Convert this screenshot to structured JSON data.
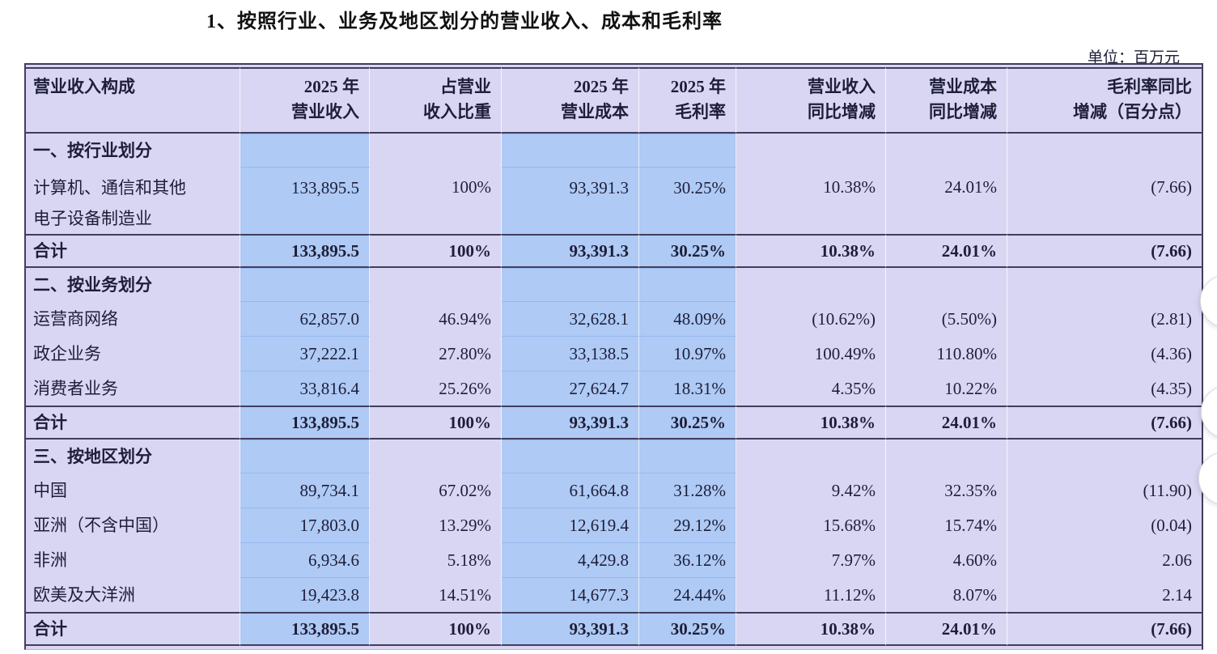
{
  "page": {
    "title": "1、按照行业、业务及地区划分的营业收入、成本和毛利率",
    "unit_label": "单位：百万元"
  },
  "colors": {
    "row_band_blue": "#aecaf5",
    "table_lavender": "#d9d6f3",
    "rule_dark": "#413e5c",
    "text": "#1e1e38"
  },
  "table": {
    "columns": [
      {
        "label": "营业收入构成"
      },
      {
        "label": "2025 年\n营业收入"
      },
      {
        "label": "占营业\n收入比重"
      },
      {
        "label": "2025 年\n营业成本"
      },
      {
        "label": "2025 年\n毛利率"
      },
      {
        "label": "营业收入\n同比增减"
      },
      {
        "label": "营业成本\n同比增减"
      },
      {
        "label": "毛利率同比\n增减（百分点）"
      }
    ],
    "total_label": "合计",
    "sections": [
      {
        "title": "一、按行业划分",
        "rows": [
          {
            "label": "计算机、通信和其他\n电子设备制造业",
            "values": [
              "133,895.5",
              "100%",
              "93,391.3",
              "30.25%",
              "10.38%",
              "24.01%",
              "(7.66)"
            ]
          }
        ],
        "total": [
          "133,895.5",
          "100%",
          "93,391.3",
          "30.25%",
          "10.38%",
          "24.01%",
          "(7.66)"
        ]
      },
      {
        "title": "二、按业务划分",
        "rows": [
          {
            "label": "运营商网络",
            "values": [
              "62,857.0",
              "46.94%",
              "32,628.1",
              "48.09%",
              "(10.62%)",
              "(5.50%)",
              "(2.81)"
            ]
          },
          {
            "label": "政企业务",
            "values": [
              "37,222.1",
              "27.80%",
              "33,138.5",
              "10.97%",
              "100.49%",
              "110.80%",
              "(4.36)"
            ]
          },
          {
            "label": "消费者业务",
            "values": [
              "33,816.4",
              "25.26%",
              "27,624.7",
              "18.31%",
              "4.35%",
              "10.22%",
              "(4.35)"
            ]
          }
        ],
        "total": [
          "133,895.5",
          "100%",
          "93,391.3",
          "30.25%",
          "10.38%",
          "24.01%",
          "(7.66)"
        ]
      },
      {
        "title": "三、按地区划分",
        "rows": [
          {
            "label": "中国",
            "values": [
              "89,734.1",
              "67.02%",
              "61,664.8",
              "31.28%",
              "9.42%",
              "32.35%",
              "(11.90)"
            ]
          },
          {
            "label": "亚洲（不含中国）",
            "values": [
              "17,803.0",
              "13.29%",
              "12,619.4",
              "29.12%",
              "15.68%",
              "15.74%",
              "(0.04)"
            ]
          },
          {
            "label": "非洲",
            "values": [
              "6,934.6",
              "5.18%",
              "4,429.8",
              "36.12%",
              "7.97%",
              "4.60%",
              "2.06"
            ]
          },
          {
            "label": "欧美及大洋洲",
            "values": [
              "19,423.8",
              "14.51%",
              "14,677.3",
              "24.44%",
              "11.12%",
              "8.07%",
              "2.14"
            ]
          }
        ],
        "total": [
          "133,895.5",
          "100%",
          "93,391.3",
          "30.25%",
          "10.38%",
          "24.01%",
          "(7.66)"
        ]
      }
    ]
  },
  "side_buttons": {
    "count": 3
  }
}
